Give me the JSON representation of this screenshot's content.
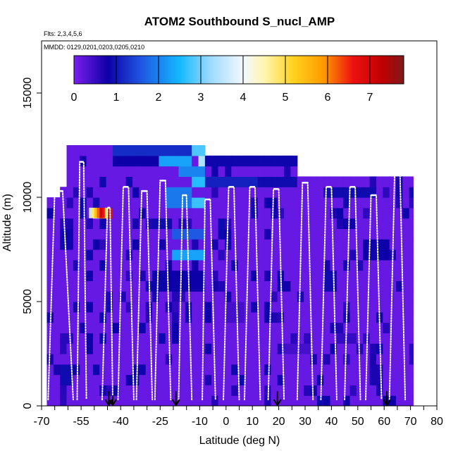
{
  "chart_data": {
    "type": "heatmap",
    "title": "ATOM2 Southbound S_nucl_AMP",
    "subtitle_flights": "Flts: 2,3,4,5,6",
    "subtitle_dates": "MMDD: 0129,0201,0203,0205,0210",
    "xlabel": "Latitude (deg N)",
    "ylabel": "Altitude (m)",
    "xlim": [
      -70,
      80
    ],
    "ylim": [
      0,
      17500
    ],
    "x_ticks": [
      -70,
      -55,
      -40,
      -25,
      -10,
      0,
      10,
      20,
      30,
      40,
      50,
      60,
      70,
      80
    ],
    "x_minor_step": 5,
    "y_ticks": [
      0,
      5000,
      10000,
      15000
    ],
    "colorbar": {
      "range": [
        0,
        7.8
      ],
      "ticks": [
        0,
        1,
        2,
        3,
        4,
        5,
        6,
        7
      ],
      "stops": [
        {
          "v": 0.0,
          "c": "#7b1fef"
        },
        {
          "v": 0.8,
          "c": "#0d00a8"
        },
        {
          "v": 1.6,
          "c": "#1f58e3"
        },
        {
          "v": 2.5,
          "c": "#13b8ff"
        },
        {
          "v": 3.2,
          "c": "#9ad9ff"
        },
        {
          "v": 4.0,
          "c": "#f3f8ff"
        },
        {
          "v": 4.5,
          "c": "#fff6b0"
        },
        {
          "v": 5.2,
          "c": "#ffd21e"
        },
        {
          "v": 5.9,
          "c": "#ff9a00"
        },
        {
          "v": 6.6,
          "c": "#ee1111"
        },
        {
          "v": 7.3,
          "c": "#c00000"
        },
        {
          "v": 7.8,
          "c": "#7d1a1a"
        }
      ]
    },
    "grid": {
      "lat_start": -68,
      "lat_end": 71,
      "lat_step": 2.5,
      "alt_step": 500,
      "background_value": 0.15
    },
    "column_tops": [
      {
        "lat0": -68,
        "lat1": -64,
        "top": 10000
      },
      {
        "lat0": -64,
        "lat1": -62,
        "top": 10500
      },
      {
        "lat0": -62,
        "lat1": -45,
        "top": 12500
      },
      {
        "lat0": -45,
        "lat1": -10,
        "top": 12500
      },
      {
        "lat0": -10,
        "lat1": 25,
        "top": 12000
      },
      {
        "lat0": 25,
        "lat1": 70.5,
        "top": 11000
      }
    ],
    "patches": [
      {
        "lat0": -45,
        "lat1": -9,
        "alt0": 12000,
        "alt1": 12500,
        "v": 1.2
      },
      {
        "lat0": -45,
        "lat1": -26,
        "alt0": 11500,
        "alt1": 12000,
        "v": 0.8
      },
      {
        "lat0": -26,
        "lat1": -13,
        "alt0": 11500,
        "alt1": 12000,
        "v": 2.3
      },
      {
        "lat0": -14,
        "lat1": -9,
        "alt0": 12000,
        "alt1": 12500,
        "v": 2.8
      },
      {
        "lat0": -12,
        "lat1": -9,
        "alt0": 11000,
        "alt1": 12000,
        "v": 3.4
      },
      {
        "lat0": -10,
        "lat1": 25,
        "alt0": 11500,
        "alt1": 12000,
        "v": 0.85
      },
      {
        "lat0": -20,
        "lat1": -10,
        "alt0": 11000,
        "alt1": 11500,
        "v": 2.0
      },
      {
        "lat0": -14,
        "lat1": -10,
        "alt0": 10500,
        "alt1": 11000,
        "v": 2.6
      },
      {
        "lat0": -20,
        "lat1": -10,
        "alt0": 9500,
        "alt1": 10000,
        "v": 2.7
      },
      {
        "lat0": -23,
        "lat1": -15,
        "alt0": 9500,
        "alt1": 10500,
        "v": 1.9
      },
      {
        "lat0": 10,
        "lat1": 25,
        "alt0": 10500,
        "alt1": 11000,
        "v": 0.9
      },
      {
        "lat0": 35,
        "lat1": 55,
        "alt0": 10000,
        "alt1": 10500,
        "v": 0.9
      },
      {
        "lat0": -10,
        "lat1": 10,
        "alt0": 10500,
        "alt1": 11000,
        "v": 1.1
      },
      {
        "lat0": -52,
        "lat1": -44,
        "alt0": 9000,
        "alt1": 9500,
        "v": 5.5
      },
      {
        "lat0": -52,
        "lat1": -49,
        "alt0": 9000,
        "alt1": 9500,
        "v": 3.6
      },
      {
        "lat0": -47,
        "lat1": -45,
        "alt0": 9000,
        "alt1": 9500,
        "v": 6.8
      },
      {
        "lat0": -21,
        "lat1": -10,
        "alt0": 7000,
        "alt1": 7500,
        "v": 2.3
      },
      {
        "lat0": -21,
        "lat1": -10,
        "alt0": 8000,
        "alt1": 8500,
        "v": 1.6
      },
      {
        "lat0": -30,
        "lat1": -22,
        "alt0": 8500,
        "alt1": 9000,
        "v": 0.9
      },
      {
        "lat0": -30,
        "lat1": -10,
        "alt0": 5500,
        "alt1": 6500,
        "v": 0.8
      },
      {
        "lat0": 35,
        "lat1": 40,
        "alt0": 5500,
        "alt1": 6500,
        "v": 0.9
      },
      {
        "lat0": 52,
        "lat1": 60,
        "alt0": 7000,
        "alt1": 8000,
        "v": 0.8
      },
      {
        "lat0": -64,
        "lat1": -58,
        "alt0": 7500,
        "alt1": 8500,
        "v": 0.85
      },
      {
        "lat0": -64,
        "lat1": -60,
        "alt0": 1000,
        "alt1": 2000,
        "v": 0.9
      },
      {
        "lat0": -64,
        "lat1": -60,
        "alt0": 3000,
        "alt1": 3500,
        "v": 0.6
      },
      {
        "lat0": 54,
        "lat1": 58,
        "alt0": 1000,
        "alt1": 2000,
        "v": 0.7
      },
      {
        "lat0": 58,
        "lat1": 63,
        "alt0": 0,
        "alt1": 500,
        "v": 0.8
      },
      {
        "lat0": 20,
        "lat1": 30,
        "alt0": 2500,
        "alt1": 3000,
        "v": 0.4
      },
      {
        "lat0": -2,
        "lat1": 5,
        "alt0": 4000,
        "alt1": 5000,
        "v": 0.4
      },
      {
        "lat0": 40,
        "lat1": 48,
        "alt0": 3000,
        "alt1": 3500,
        "v": 0.5
      }
    ],
    "flight_profiles_deg": [
      [
        -67.5,
        -65,
        -62,
        -58
      ],
      [
        -56.5,
        -55.5,
        -54,
        -53
      ],
      [
        -47,
        -45,
        -44,
        -43
      ],
      [
        -41,
        -39,
        -37,
        -35
      ],
      [
        -34,
        -32,
        -30,
        -28
      ],
      [
        -27,
        -25,
        -23,
        -21
      ],
      [
        -18,
        -16.5,
        -15,
        -13
      ],
      [
        -9,
        -8,
        -6,
        -4
      ],
      [
        -1,
        1,
        3,
        5
      ],
      [
        7,
        9,
        11,
        13
      ],
      [
        16,
        18,
        20,
        22
      ],
      [
        27,
        29,
        31,
        33
      ],
      [
        36,
        38,
        40,
        42
      ],
      [
        45,
        47,
        49,
        51
      ],
      [
        53,
        55,
        57,
        59
      ],
      [
        62,
        64,
        66,
        68
      ]
    ],
    "profile_top_altitudes": [
      10300,
      11700,
      9500,
      10500,
      10300,
      10800,
      10100,
      9900,
      10500,
      10500,
      10400,
      10700,
      10500,
      10500,
      10100,
      11300
    ],
    "arrow_markers": [
      {
        "lat": -44.5,
        "alt_top": 700
      },
      {
        "lat": -43,
        "alt_top": 500
      },
      {
        "lat": -19,
        "alt_top": 700
      },
      {
        "lat": 19.5,
        "alt_top": 700
      },
      {
        "lat": 61,
        "alt_top": 700
      }
    ]
  }
}
